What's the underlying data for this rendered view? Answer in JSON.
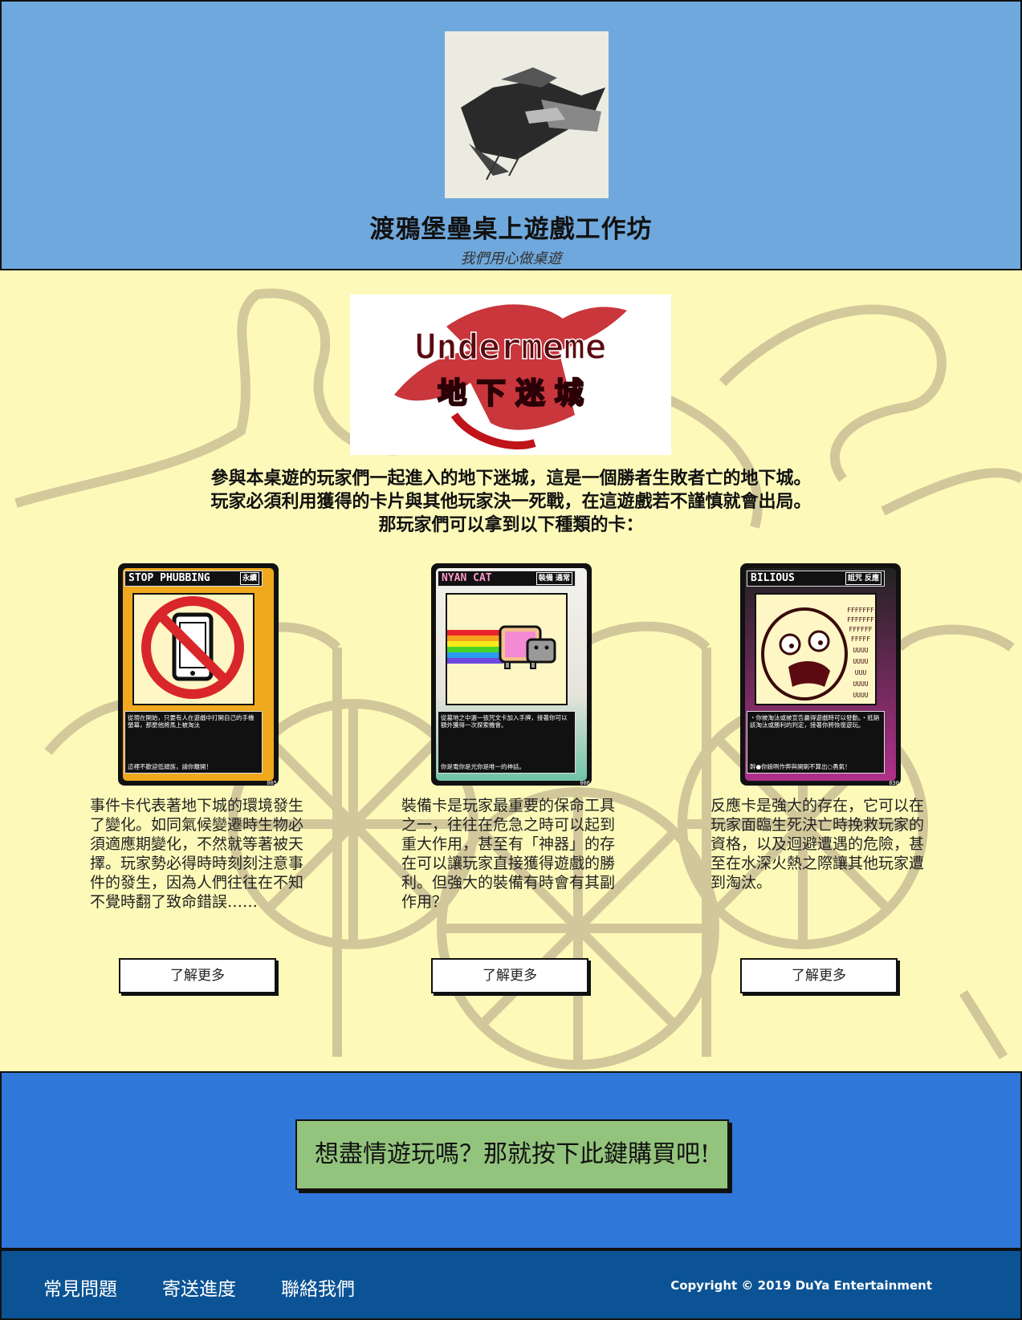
{
  "header": {
    "title": "渡鴉堡壘桌上遊戲工作坊",
    "subtitle": "我們用心做桌遊",
    "logo_icon": "raven-logo-icon"
  },
  "banner": {
    "title_en": "Undermeme",
    "title_zh": "地 下 迷 城"
  },
  "intro": {
    "line1": "參與本桌遊的玩家們一起進入的地下迷城，這是一個勝者生敗者亡的地下城。",
    "line2": "玩家必須利用獲得的卡片與其他玩家決一死戰，在這遊戲若不謹慎就會出局。",
    "line3": "那玩家們可以拿到以下種類的卡："
  },
  "cards": [
    {
      "name": "STOP PHUBBING",
      "tag": "永續",
      "frame_color": "#f0a81c",
      "text": "從現在開始，只要有人在遊戲中打開自己的手機螢幕，那麼他將馬上被淘汰",
      "quote": "這裡不歡迎低頭族，請你離開！",
      "number": "005",
      "description": "事件卡代表著地下城的環境發生了變化。如同氣候變遷時生物必須適應期變化，不然就等著被天擇。玩家勢必得時時刻刻注意事件的發生，因為人們往往在不知不覺時翻了致命錯誤……",
      "button": "了解更多"
    },
    {
      "name": "NYAN CAT",
      "tag": "裝備 通常",
      "frame_color": "#6fc3a8",
      "text": "從墓地之中選一張咒文卡加入手牌，接著你可以額外獲得一次探索機會。",
      "quote": "你是電你是光你是唯一的神話。",
      "number": "006",
      "description": "裝備卡是玩家最重要的保命工具之一，往往在危急之時可以起到重大作用，甚至有「神器」的存在可以讓玩家直接獲得遊戲的勝利。但強大的裝備有時會有其副作用？",
      "button": "了解更多"
    },
    {
      "name": "BILIOUS",
      "tag": "詛咒 反應",
      "frame_color": "#b0308a",
      "text": "・你被淘汰或被宣告贏得遊戲時可以發動。・抵銷該淘汰或勝利的判定，接著你將恢復遊玩。",
      "quote": "幹●你娘咧作弊與開刷不算出○勇氣！",
      "number": "030",
      "description": "反應卡是強大的存在，它可以在玩家面臨生死決亡時挽救玩家的資格，以及迴避遭遇的危險，甚至在水深火熱之際讓其他玩家遭到淘汰。",
      "button": "了解更多"
    }
  ],
  "buy": {
    "label": "想盡情遊玩嗎？那就按下此鍵購買吧!"
  },
  "footer": {
    "links": [
      "常見問題",
      "寄送進度",
      "聯絡我們"
    ],
    "copyright": "Copyright © 2019 DuYa Entertainment"
  },
  "colors": {
    "header_bg": "#6fa8dc",
    "main_bg": "#fdfab9",
    "buy_bg": "#2f77d9",
    "buy_button": "#93c47d",
    "footer_bg": "#0b5394"
  }
}
